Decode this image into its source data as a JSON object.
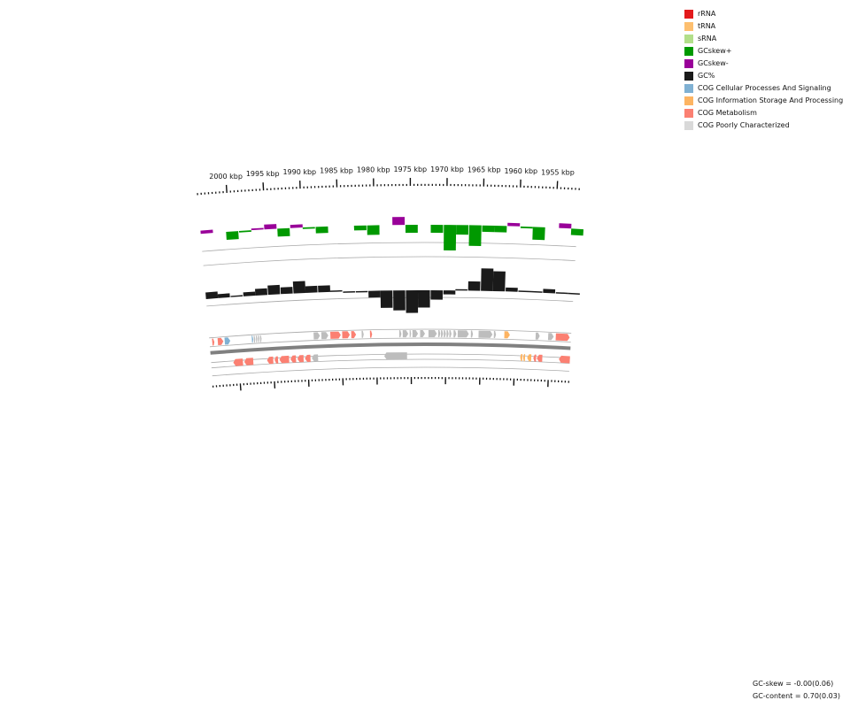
{
  "legend": {
    "items": [
      {
        "label": "rRNA",
        "color": "#e31a1c"
      },
      {
        "label": "tRNA",
        "color": "#fdbf6f"
      },
      {
        "label": "sRNA",
        "color": "#b2df8a"
      },
      {
        "label": "GCskew+",
        "color": "#009900"
      },
      {
        "label": "GCskew-",
        "color": "#990099"
      },
      {
        "label": "GC%",
        "color": "#1a1a1a"
      },
      {
        "label": "COG Cellular Processes And Signaling",
        "color": "#80b1d3"
      },
      {
        "label": "COG Information Storage And Processing",
        "color": "#fdb462"
      },
      {
        "label": "COG Metabolism",
        "color": "#fb8072"
      },
      {
        "label": "COG Poorly Characterized",
        "color": "#d9d9d9"
      }
    ]
  },
  "scale": {
    "labels": [
      "2000 kbp",
      "1995 kbp",
      "1990 kbp",
      "1985 kbp",
      "1980 kbp",
      "1975 kbp",
      "1970 kbp",
      "1965 kbp",
      "1960 kbp",
      "1955 kbp"
    ]
  },
  "footer": {
    "gc_skew": "GC-skew = -0.00(0.06)",
    "gc_content": "GC-content = 0.70(0.03)"
  },
  "colors": {
    "gene_gray": "#bdbdbd",
    "backbone": "#808080",
    "guide": "#999999"
  },
  "chart_data": {
    "type": "circular genome map (partial arc)",
    "axis_kbp_range": [
      1952,
      2004
    ],
    "gc_skew": {
      "positive_color": "#009900",
      "negative_color": "#990099",
      "kbp": [
        2004,
        2002.3,
        2000.5,
        1998.7,
        1997.0,
        1995.2,
        1993.4,
        1991.6,
        1989.9,
        1988.1,
        1986.4,
        1984.6,
        1982.8,
        1981.0,
        1979.3,
        1977.5,
        1975.7,
        1974.0,
        1972.2,
        1970.4,
        1968.7,
        1966.9,
        1965.1,
        1963.4,
        1961.6,
        1959.8,
        1958.1,
        1956.3,
        1954.5,
        1952.8
      ],
      "values": [
        0.02,
        0.0,
        -0.05,
        -0.01,
        0.01,
        0.03,
        -0.05,
        0.02,
        -0.01,
        -0.04,
        0.0,
        0.0,
        -0.03,
        -0.06,
        0.0,
        0.05,
        -0.05,
        0.0,
        -0.05,
        -0.16,
        -0.06,
        -0.13,
        -0.04,
        -0.04,
        0.02,
        -0.01,
        -0.08,
        0.0,
        0.03,
        -0.04
      ]
    },
    "gc_content": {
      "color": "#1a1a1a",
      "kbp": [
        2004,
        2002.3,
        2000.5,
        1998.7,
        1997.0,
        1995.2,
        1993.4,
        1991.6,
        1989.9,
        1988.1,
        1986.4,
        1984.6,
        1982.8,
        1981.0,
        1979.3,
        1977.5,
        1975.7,
        1974.0,
        1972.2,
        1970.4,
        1968.7,
        1966.9,
        1965.1,
        1963.4,
        1961.6,
        1959.8,
        1958.1,
        1956.3,
        1954.5,
        1952.8
      ],
      "values": [
        0.72,
        0.71,
        0.7,
        0.71,
        0.72,
        0.73,
        0.72,
        0.74,
        0.72,
        0.72,
        0.7,
        0.69,
        0.69,
        0.67,
        0.63,
        0.62,
        0.61,
        0.63,
        0.66,
        0.68,
        0.7,
        0.73,
        0.78,
        0.77,
        0.71,
        0.7,
        0.7,
        0.71,
        0.7,
        0.7
      ]
    },
    "genes": {
      "forward": [
        {
          "start": 2003.6,
          "end": 2003.3,
          "cog": "COG Metabolism"
        },
        {
          "start": 2002.8,
          "end": 2002.0,
          "cog": "COG Metabolism"
        },
        {
          "start": 2001.8,
          "end": 2001.0,
          "cog": "COG Cellular Processes And Signaling"
        },
        {
          "start": 1997.9,
          "end": 1997.7,
          "cog": "COG Cellular Processes And Signaling"
        },
        {
          "start": 1997.6,
          "end": 1997.4,
          "cog": "COG Poorly Characterized"
        },
        {
          "start": 1997.3,
          "end": 1997.1,
          "cog": "COG Poorly Characterized"
        },
        {
          "start": 1997.0,
          "end": 1996.8,
          "cog": "COG Poorly Characterized"
        },
        {
          "start": 1996.7,
          "end": 1996.5,
          "cog": "COG Poorly Characterized"
        },
        {
          "start": 1989.0,
          "end": 1988.1,
          "cog": "COG Poorly Characterized"
        },
        {
          "start": 1987.9,
          "end": 1986.9,
          "cog": "COG Poorly Characterized"
        },
        {
          "start": 1986.6,
          "end": 1985.1,
          "cog": "COG Metabolism"
        },
        {
          "start": 1984.9,
          "end": 1983.8,
          "cog": "COG Metabolism"
        },
        {
          "start": 1983.6,
          "end": 1982.9,
          "cog": "COG Metabolism"
        },
        {
          "start": 1982.1,
          "end": 1981.8,
          "cog": "COG Poorly Characterized"
        },
        {
          "start": 1980.9,
          "end": 1980.6,
          "cog": "COG Metabolism"
        },
        {
          "start": 1976.7,
          "end": 1976.4,
          "cog": "COG Poorly Characterized"
        },
        {
          "start": 1976.2,
          "end": 1975.4,
          "cog": "COG Poorly Characterized"
        },
        {
          "start": 1975.2,
          "end": 1975.0,
          "cog": "COG Poorly Characterized"
        },
        {
          "start": 1974.8,
          "end": 1974.0,
          "cog": "COG Poorly Characterized"
        },
        {
          "start": 1973.7,
          "end": 1973.0,
          "cog": "COG Poorly Characterized"
        },
        {
          "start": 1972.5,
          "end": 1971.3,
          "cog": "COG Poorly Characterized"
        },
        {
          "start": 1971.1,
          "end": 1970.8,
          "cog": "COG Poorly Characterized"
        },
        {
          "start": 1970.7,
          "end": 1970.4,
          "cog": "COG Poorly Characterized"
        },
        {
          "start": 1970.3,
          "end": 1970.0,
          "cog": "COG Poorly Characterized"
        },
        {
          "start": 1969.9,
          "end": 1969.6,
          "cog": "COG Poorly Characterized"
        },
        {
          "start": 1969.5,
          "end": 1969.2,
          "cog": "COG Poorly Characterized"
        },
        {
          "start": 1968.9,
          "end": 1968.5,
          "cog": "COG Poorly Characterized"
        },
        {
          "start": 1968.3,
          "end": 1966.7,
          "cog": "COG Poorly Characterized"
        },
        {
          "start": 1966.4,
          "end": 1966.1,
          "cog": "COG Poorly Characterized"
        },
        {
          "start": 1965.3,
          "end": 1963.3,
          "cog": "COG Poorly Characterized"
        },
        {
          "start": 1963.1,
          "end": 1962.8,
          "cog": "COG Poorly Characterized"
        },
        {
          "start": 1961.6,
          "end": 1960.8,
          "cog": "COG Information Storage And Processing"
        },
        {
          "start": 1957.1,
          "end": 1956.5,
          "cog": "COG Poorly Characterized"
        },
        {
          "start": 1955.3,
          "end": 1954.5,
          "cog": "COG Poorly Characterized"
        },
        {
          "start": 1954.2,
          "end": 1952.2,
          "cog": "COG Metabolism"
        }
      ],
      "reverse": [
        {
          "start": 2000.8,
          "end": 1999.4,
          "cog": "COG Metabolism"
        },
        {
          "start": 1999.2,
          "end": 1997.9,
          "cog": "COG Metabolism"
        },
        {
          "start": 1995.9,
          "end": 1995.0,
          "cog": "COG Metabolism"
        },
        {
          "start": 1994.8,
          "end": 1994.3,
          "cog": "COG Metabolism"
        },
        {
          "start": 1994.1,
          "end": 1992.7,
          "cog": "COG Metabolism"
        },
        {
          "start": 1992.5,
          "end": 1991.7,
          "cog": "COG Metabolism"
        },
        {
          "start": 1991.5,
          "end": 1990.6,
          "cog": "COG Metabolism"
        },
        {
          "start": 1990.4,
          "end": 1989.6,
          "cog": "COG Metabolism"
        },
        {
          "start": 1989.4,
          "end": 1988.5,
          "cog": "COG Poorly Characterized"
        },
        {
          "start": 1978.9,
          "end": 1975.6,
          "cog": "COG Poorly Characterized"
        },
        {
          "start": 1959.2,
          "end": 1958.9,
          "cog": "COG Information Storage And Processing"
        },
        {
          "start": 1958.8,
          "end": 1958.5,
          "cog": "COG Information Storage And Processing"
        },
        {
          "start": 1958.2,
          "end": 1957.6,
          "cog": "COG Information Storage And Processing"
        },
        {
          "start": 1957.3,
          "end": 1956.9,
          "cog": "COG Metabolism"
        },
        {
          "start": 1956.8,
          "end": 1956.0,
          "cog": "COG Metabolism"
        },
        {
          "start": 1953.6,
          "end": 1952.0,
          "cog": "COG Metabolism"
        }
      ]
    }
  }
}
